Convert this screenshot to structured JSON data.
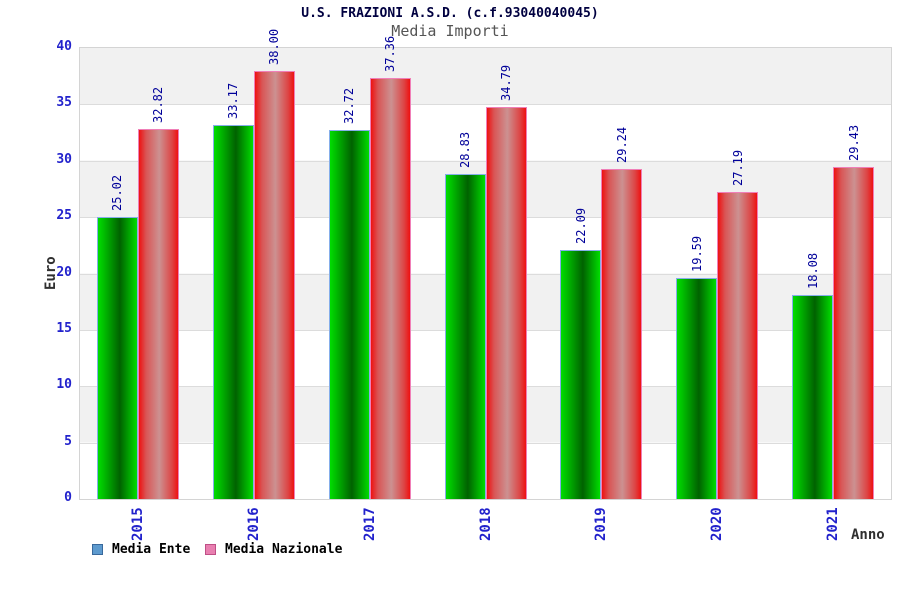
{
  "header": {
    "title": "U.S. FRAZIONI A.S.D. (c.f.93040040045)",
    "subtitle": "Media Importi"
  },
  "chart_data": {
    "type": "bar",
    "categories": [
      "2015",
      "2016",
      "2017",
      "2018",
      "2019",
      "2020",
      "2021"
    ],
    "series": [
      {
        "name": "Media Ente",
        "values": [
          25.02,
          33.17,
          32.72,
          28.83,
          22.09,
          19.59,
          18.08
        ],
        "value_labels": [
          "25.02",
          "33.17",
          "32.72",
          "28.83",
          "22.09",
          "19.59",
          "18.08"
        ],
        "bar_fill": "green-cylinder-gradient",
        "bar_edge_color": "#86aeea",
        "legend_fill": "#5d9ace"
      },
      {
        "name": "Media Nazionale",
        "values": [
          32.82,
          38.0,
          37.36,
          34.79,
          29.24,
          27.19,
          29.43
        ],
        "value_labels": [
          "32.82",
          "38.00",
          "37.36",
          "34.79",
          "29.24",
          "27.19",
          "29.43"
        ],
        "bar_fill": "red-cylinder-gradient",
        "bar_edge_color": "#f07fb8",
        "legend_fill": "#e87fb0"
      }
    ],
    "title": "U.S. FRAZIONI A.S.D. (c.f.93040040045)",
    "subtitle": "Media Importi",
    "xlabel": "Anno",
    "ylabel": "Euro",
    "ylim": [
      0,
      40
    ],
    "ytick_step": 5,
    "yticks": [
      0,
      5,
      10,
      15,
      20,
      25,
      30,
      35,
      40
    ],
    "grid": "horizontal-bands",
    "band_color": "#f1f1f1",
    "legend_position": "bottom-left",
    "tick_label_color": "#2222cc",
    "value_label_color": "#000099",
    "value_label_rotation": -90,
    "x_label_rotation": -90
  }
}
